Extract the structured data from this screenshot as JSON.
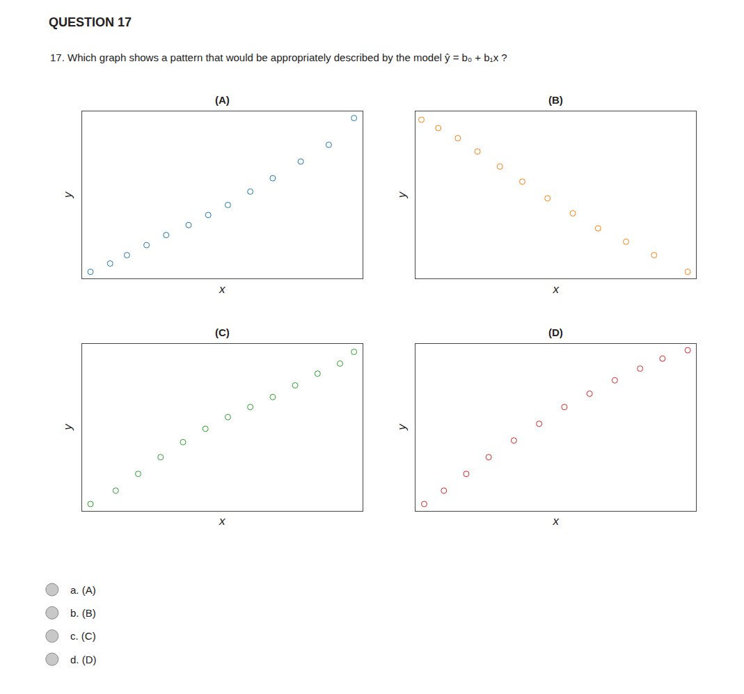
{
  "title": "QUESTION 17",
  "subtitle": "17. Which graph shows a pattern that would be appropriately described by the model ŷ = b₀ + b₁x ?",
  "annotations": [
    "a. (A)",
    "b. (B)",
    "c. (C)",
    "d. (D)"
  ],
  "chart_data": [
    {
      "type": "scatter",
      "title": "(A)",
      "xlabel": "x",
      "ylabel": "y",
      "x": [
        0.03,
        0.1,
        0.16,
        0.23,
        0.3,
        0.38,
        0.45,
        0.52,
        0.6,
        0.68,
        0.78,
        0.88,
        0.97
      ],
      "y": [
        0.04,
        0.09,
        0.14,
        0.2,
        0.26,
        0.32,
        0.38,
        0.44,
        0.52,
        0.6,
        0.7,
        0.8,
        0.96
      ],
      "xlim": [
        0,
        1
      ],
      "ylim": [
        0,
        1
      ],
      "tick_labels": false,
      "grid": false,
      "marker": "circle-open"
    },
    {
      "type": "scatter",
      "title": "(B)",
      "xlabel": "x",
      "ylabel": "y",
      "x": [
        0.02,
        0.08,
        0.15,
        0.22,
        0.3,
        0.38,
        0.47,
        0.56,
        0.65,
        0.75,
        0.85,
        0.97
      ],
      "y": [
        0.95,
        0.9,
        0.84,
        0.76,
        0.67,
        0.58,
        0.48,
        0.39,
        0.3,
        0.22,
        0.14,
        0.04
      ],
      "xlim": [
        0,
        1
      ],
      "ylim": [
        0,
        1
      ],
      "tick_labels": false,
      "grid": false,
      "marker": "circle-open"
    },
    {
      "type": "scatter",
      "title": "(C)",
      "xlabel": "x",
      "ylabel": "y",
      "x": [
        0.03,
        0.12,
        0.2,
        0.28,
        0.36,
        0.44,
        0.52,
        0.6,
        0.68,
        0.76,
        0.84,
        0.92,
        0.97
      ],
      "y": [
        0.04,
        0.12,
        0.22,
        0.32,
        0.41,
        0.49,
        0.56,
        0.62,
        0.68,
        0.75,
        0.82,
        0.88,
        0.95
      ],
      "xlim": [
        0,
        1
      ],
      "ylim": [
        0,
        1
      ],
      "tick_labels": false,
      "grid": false,
      "marker": "circle-open"
    },
    {
      "type": "scatter",
      "title": "(D)",
      "xlabel": "x",
      "ylabel": "y",
      "x": [
        0.03,
        0.1,
        0.18,
        0.26,
        0.35,
        0.44,
        0.53,
        0.62,
        0.71,
        0.8,
        0.88,
        0.97
      ],
      "y": [
        0.04,
        0.12,
        0.22,
        0.32,
        0.42,
        0.52,
        0.62,
        0.7,
        0.78,
        0.85,
        0.91,
        0.96
      ],
      "xlim": [
        0,
        1
      ],
      "ylim": [
        0,
        1
      ],
      "tick_labels": false,
      "grid": false,
      "marker": "circle-open"
    }
  ]
}
